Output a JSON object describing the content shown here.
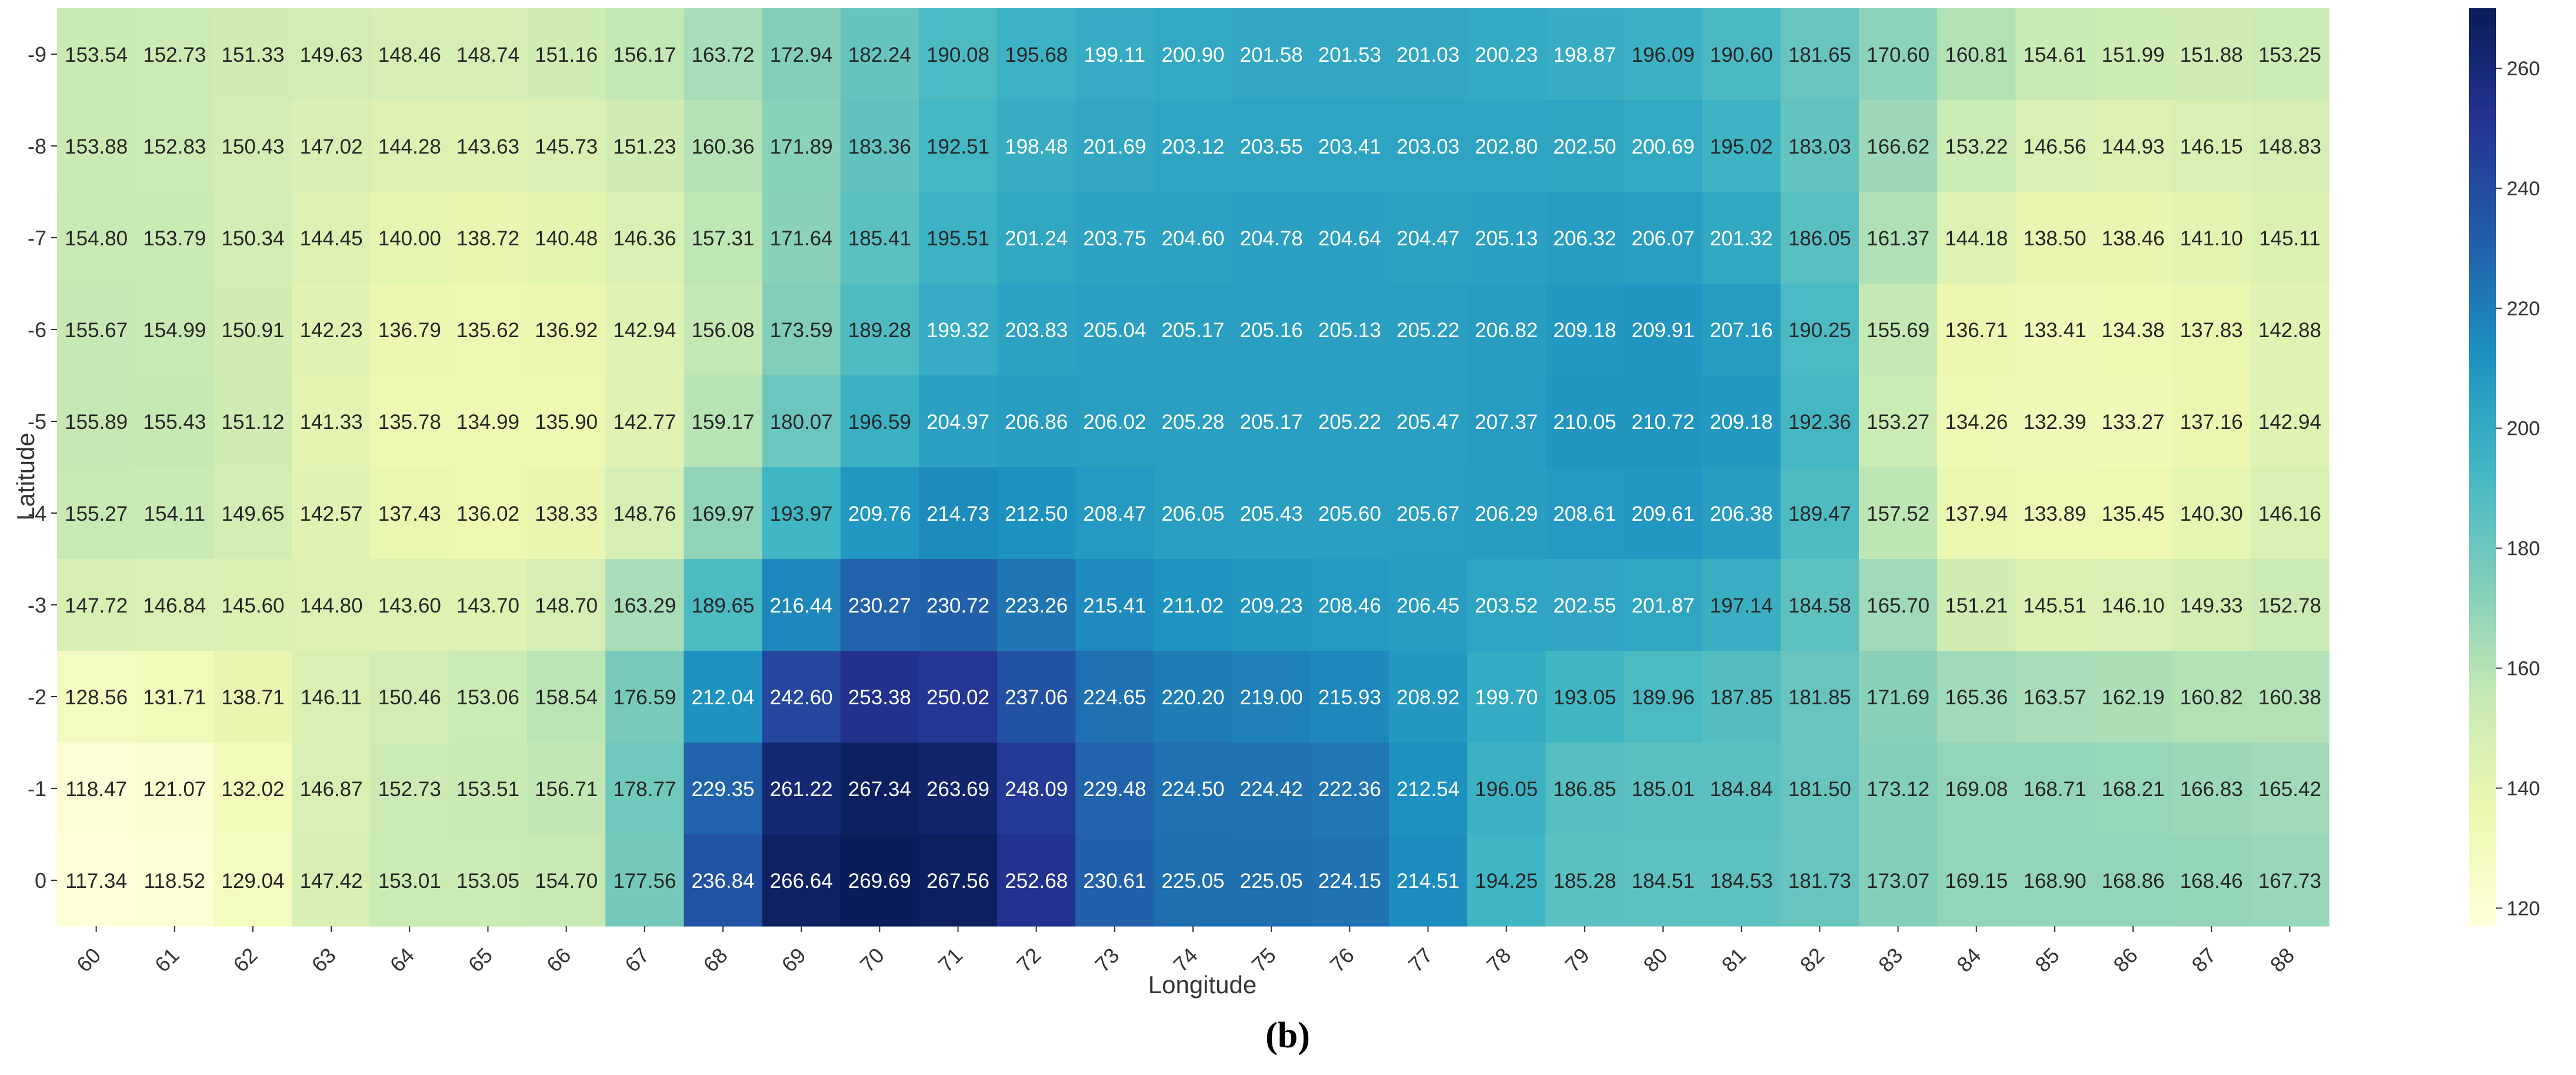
{
  "chart_data": {
    "type": "heatmap",
    "xlabel": "Longitude",
    "ylabel": "Latitude",
    "caption": "(b)",
    "x": [
      "60",
      "61",
      "62",
      "63",
      "64",
      "65",
      "66",
      "67",
      "68",
      "69",
      "70",
      "71",
      "72",
      "73",
      "74",
      "75",
      "76",
      "77",
      "78",
      "79",
      "80",
      "81",
      "82",
      "83",
      "84",
      "85",
      "86",
      "87",
      "88"
    ],
    "y": [
      "-9",
      "-8",
      "-7",
      "-6",
      "-5",
      "-4",
      "-3",
      "-2",
      "-1",
      "0"
    ],
    "values": [
      [
        153.54,
        152.73,
        151.33,
        149.63,
        148.46,
        148.74,
        151.16,
        156.17,
        163.72,
        172.94,
        182.24,
        190.08,
        195.68,
        199.11,
        200.9,
        201.58,
        201.53,
        201.03,
        200.23,
        198.87,
        196.09,
        190.6,
        181.65,
        170.6,
        160.81,
        154.61,
        151.99,
        151.88,
        153.25
      ],
      [
        153.88,
        152.83,
        150.43,
        147.02,
        144.28,
        143.63,
        145.73,
        151.23,
        160.36,
        171.89,
        183.36,
        192.51,
        198.48,
        201.69,
        203.12,
        203.55,
        203.41,
        203.03,
        202.8,
        202.5,
        200.69,
        195.02,
        183.03,
        166.62,
        153.22,
        146.56,
        144.93,
        146.15,
        148.83
      ],
      [
        154.8,
        153.79,
        150.34,
        144.45,
        140.0,
        138.72,
        140.48,
        146.36,
        157.31,
        171.64,
        185.41,
        195.51,
        201.24,
        203.75,
        204.6,
        204.78,
        204.64,
        204.47,
        205.13,
        206.32,
        206.07,
        201.32,
        186.05,
        161.37,
        144.18,
        138.5,
        138.46,
        141.1,
        145.11
      ],
      [
        155.67,
        154.99,
        150.91,
        142.23,
        136.79,
        135.62,
        136.92,
        142.94,
        156.08,
        173.59,
        189.28,
        199.32,
        203.83,
        205.04,
        205.17,
        205.16,
        205.13,
        205.22,
        206.82,
        209.18,
        209.91,
        207.16,
        190.25,
        155.69,
        136.71,
        133.41,
        134.38,
        137.83,
        142.88
      ],
      [
        155.89,
        155.43,
        151.12,
        141.33,
        135.78,
        134.99,
        135.9,
        142.77,
        159.17,
        180.07,
        196.59,
        204.97,
        206.86,
        206.02,
        205.28,
        205.17,
        205.22,
        205.47,
        207.37,
        210.05,
        210.72,
        209.18,
        192.36,
        153.27,
        134.26,
        132.39,
        133.27,
        137.16,
        142.94
      ],
      [
        155.27,
        154.11,
        149.65,
        142.57,
        137.43,
        136.02,
        138.33,
        148.76,
        169.97,
        193.97,
        209.76,
        214.73,
        212.5,
        208.47,
        206.05,
        205.43,
        205.6,
        205.67,
        206.29,
        208.61,
        209.61,
        206.38,
        189.47,
        157.52,
        137.94,
        133.89,
        135.45,
        140.3,
        146.16
      ],
      [
        147.72,
        146.84,
        145.6,
        144.8,
        143.6,
        143.7,
        148.7,
        163.29,
        189.65,
        216.44,
        230.27,
        230.72,
        223.26,
        215.41,
        211.02,
        209.23,
        208.46,
        206.45,
        203.52,
        202.55,
        201.87,
        197.14,
        184.58,
        165.7,
        151.21,
        145.51,
        146.1,
        149.33,
        152.78
      ],
      [
        128.56,
        131.71,
        138.71,
        146.11,
        150.46,
        153.06,
        158.54,
        176.59,
        212.04,
        242.6,
        253.38,
        250.02,
        237.06,
        224.65,
        220.2,
        219.0,
        215.93,
        208.92,
        199.7,
        193.05,
        189.96,
        187.85,
        181.85,
        171.69,
        165.36,
        163.57,
        162.19,
        160.82,
        160.38
      ],
      [
        118.47,
        121.07,
        132.02,
        146.87,
        152.73,
        153.51,
        156.71,
        178.77,
        229.35,
        261.22,
        267.34,
        263.69,
        248.09,
        229.48,
        224.5,
        224.42,
        222.36,
        212.54,
        196.05,
        186.85,
        185.01,
        184.84,
        181.5,
        173.12,
        169.08,
        168.71,
        168.21,
        166.83,
        165.42
      ],
      [
        117.34,
        118.52,
        129.04,
        147.42,
        153.01,
        153.05,
        154.7,
        177.56,
        236.84,
        266.64,
        269.69,
        267.56,
        252.68,
        230.61,
        225.05,
        225.05,
        224.15,
        214.51,
        194.25,
        185.28,
        184.51,
        184.53,
        181.73,
        173.07,
        169.15,
        168.9,
        168.86,
        168.46,
        167.73
      ]
    ],
    "colorbar": {
      "min": 117,
      "max": 270,
      "ticks": [
        120,
        140,
        160,
        180,
        200,
        220,
        240,
        260
      ]
    },
    "colormap": "YlGnBu",
    "cmap_stops": [
      "#ffffd9",
      "#edf8b1",
      "#c7e9b4",
      "#7fcdbb",
      "#41b6c4",
      "#1d91c0",
      "#225ea8",
      "#253494",
      "#081d58"
    ]
  }
}
